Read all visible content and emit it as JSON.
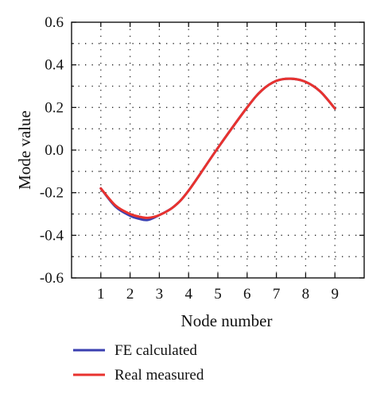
{
  "chart_data": {
    "type": "line",
    "title": "",
    "xlabel": "Node number",
    "ylabel": "Mode value",
    "xlim": [
      0,
      10
    ],
    "ylim": [
      -0.6,
      0.6
    ],
    "x_ticks": [
      1,
      2,
      3,
      4,
      5,
      6,
      7,
      8,
      9
    ],
    "x_tick_labels": [
      "1",
      "2",
      "3",
      "4",
      "5",
      "6",
      "7",
      "8",
      "9"
    ],
    "y_ticks": [
      0.6,
      0.4,
      0.2,
      0.0,
      -0.2,
      -0.4,
      -0.6
    ],
    "y_tick_labels": [
      "0.6",
      "0.4",
      "0.2",
      "0.0",
      "-0.2",
      "-0.4",
      "-0.6"
    ],
    "grid": true,
    "grid_style": "dotted",
    "legend_position": "bottom-left, below plot",
    "series": [
      {
        "name": "FE calculated",
        "color": "#3a3fb0",
        "x": [
          1,
          1.5,
          2,
          2.3,
          2.6,
          3,
          3.5,
          4,
          5,
          6,
          6.5,
          7,
          7.5,
          8,
          8.5,
          9
        ],
        "y": [
          -0.18,
          -0.265,
          -0.308,
          -0.322,
          -0.328,
          -0.305,
          -0.265,
          -0.19,
          0.01,
          0.2,
          0.28,
          0.325,
          0.335,
          0.32,
          0.275,
          0.195
        ]
      },
      {
        "name": "Real measured",
        "color": "#e8322e",
        "x": [
          1,
          1.5,
          2,
          2.3,
          2.6,
          3,
          3.5,
          4,
          5,
          6,
          6.5,
          7,
          7.5,
          8,
          8.5,
          9
        ],
        "y": [
          -0.18,
          -0.26,
          -0.3,
          -0.312,
          -0.318,
          -0.305,
          -0.265,
          -0.19,
          0.01,
          0.2,
          0.28,
          0.325,
          0.335,
          0.32,
          0.275,
          0.195
        ]
      }
    ]
  }
}
